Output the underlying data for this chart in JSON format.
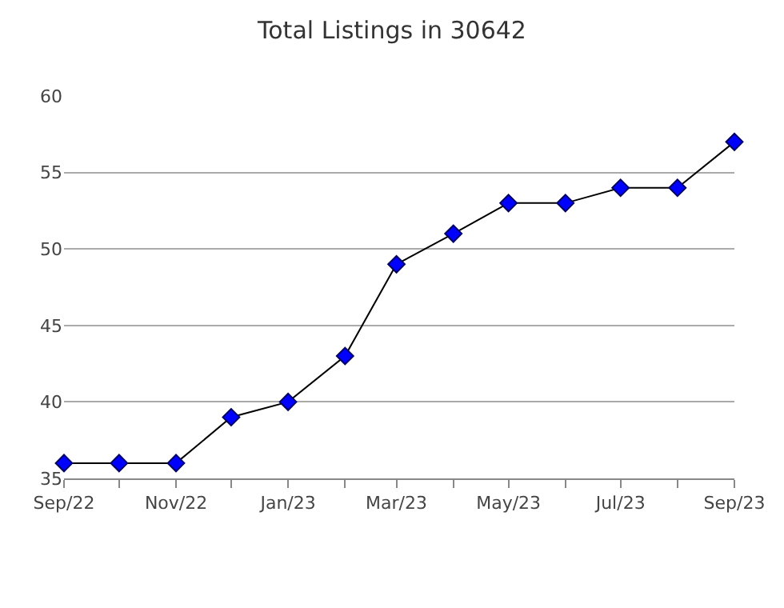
{
  "chart_data": {
    "type": "line",
    "title": "Total Listings in 30642",
    "x": [
      "2022-09",
      "2022-10",
      "2022-11",
      "2022-12",
      "2023-01",
      "2023-02",
      "2023-03",
      "2023-04",
      "2023-05",
      "2023-06",
      "2023-07",
      "2023-08",
      "2023-09"
    ],
    "series": [
      {
        "color": "#0000ff",
        "values": [
          36,
          36,
          36,
          39,
          40,
          43,
          49,
          51,
          53,
          53,
          54,
          54,
          57
        ]
      }
    ],
    "xlim": [
      "2022-09",
      "2023-09"
    ],
    "xticks": [
      {
        "value": "2022-09",
        "label": "Sep/22"
      },
      {
        "value": "2022-10",
        "label": null
      },
      {
        "value": "2022-11",
        "label": "Nov/22"
      },
      {
        "value": "2022-12",
        "label": null
      },
      {
        "value": "2023-01",
        "label": "Jan/23"
      },
      {
        "value": "2023-02",
        "label": null
      },
      {
        "value": "2023-03",
        "label": "Mar/23"
      },
      {
        "value": "2023-04",
        "label": null
      },
      {
        "value": "2023-05",
        "label": "May/23"
      },
      {
        "value": "2023-06",
        "label": null
      },
      {
        "value": "2023-07",
        "label": "Jul/23"
      },
      {
        "value": "2023-08",
        "label": null
      },
      {
        "value": "2023-09",
        "label": "Sep/23"
      }
    ],
    "ylim": [
      35,
      60
    ],
    "yticks": [
      35,
      40,
      45,
      50,
      55,
      60
    ],
    "grid": "y",
    "marker": "diamond",
    "line_style": "solid"
  }
}
